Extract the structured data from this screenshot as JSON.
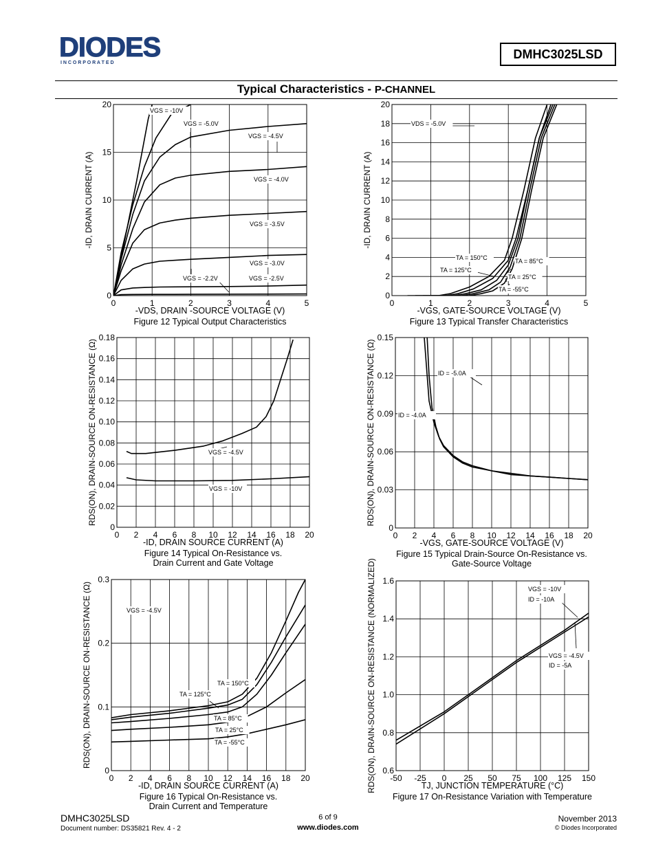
{
  "header": {
    "logo_text": "DIODES",
    "logo_sub": "I N C O R P O R A T E D",
    "part_number": "DMHC3025LSD",
    "title_main": "Typical Characteristics - ",
    "title_channel": "P-CHANNEL"
  },
  "footer": {
    "part": "DMHC3025LSD",
    "doc_number": "Document number: DS35821 Rev. 4 - 2",
    "page": "6 of 9",
    "website": "www.diodes.com",
    "date": "November 2013",
    "copyright": "© Diodes Incorporated"
  },
  "chart_data": [
    {
      "type": "line",
      "caption": "Figure 12 Typical Output Characteristics",
      "xlabel": "-VDS, DRAIN -SOURCE VOLTAGE (V)",
      "ylabel": "-ID, DRAIN CURRENT (A)",
      "xlim": [
        0,
        5
      ],
      "ylim": [
        0,
        20
      ],
      "xticks": [
        "0",
        "1",
        "2",
        "3",
        "4",
        "5"
      ],
      "yticks": [
        "0",
        "5",
        "10",
        "15",
        "20"
      ],
      "grid": true,
      "series": [
        {
          "name": "VGS = -10V",
          "x": [
            0,
            0.3,
            0.6,
            0.9,
            1.0
          ],
          "y": [
            0,
            6,
            12,
            18.5,
            20
          ]
        },
        {
          "name": "VGS = -5.0V",
          "x": [
            0,
            0.2,
            0.5,
            0.8,
            1.1,
            1.5,
            2.0
          ],
          "y": [
            0,
            4.5,
            9.5,
            13.5,
            16.5,
            19,
            20
          ]
        },
        {
          "name": "VGS = -4.5V",
          "x": [
            0,
            0.2,
            0.5,
            0.8,
            1.2,
            1.6,
            2,
            3,
            4,
            5
          ],
          "y": [
            0,
            3.8,
            8.5,
            12,
            14.5,
            15.8,
            16.6,
            17.3,
            17.7,
            18
          ]
        },
        {
          "name": "VGS = -4.0V",
          "x": [
            0,
            0.2,
            0.5,
            0.8,
            1.2,
            1.6,
            2,
            3,
            4,
            5
          ],
          "y": [
            0,
            3.2,
            7,
            9.8,
            11.6,
            12.3,
            12.6,
            13,
            13.2,
            13.5
          ]
        },
        {
          "name": "VGS = -3.5V",
          "x": [
            0,
            0.2,
            0.5,
            0.8,
            1.2,
            1.6,
            2,
            3,
            4,
            5
          ],
          "y": [
            0,
            2.6,
            5.5,
            6.9,
            7.6,
            7.9,
            8.1,
            8.4,
            8.6,
            8.8
          ]
        },
        {
          "name": "VGS = -3.0V",
          "x": [
            0,
            0.2,
            0.5,
            0.8,
            1.2,
            1.6,
            2,
            3,
            4,
            5
          ],
          "y": [
            0,
            1.6,
            2.8,
            3.3,
            3.6,
            3.7,
            3.8,
            4.0,
            4.2,
            4.3
          ]
        },
        {
          "name": "VGS = -2.5V",
          "x": [
            0,
            0.2,
            0.5,
            0.8,
            1.2,
            2,
            3,
            4,
            5
          ],
          "y": [
            0,
            0.6,
            0.8,
            0.85,
            0.9,
            0.92,
            0.95,
            1.0,
            1.1
          ]
        },
        {
          "name": "VGS = -2.2V",
          "x": [
            0,
            0.2,
            0.5,
            1,
            2,
            3,
            4,
            5
          ],
          "y": [
            0,
            0.1,
            0.12,
            0.13,
            0.14,
            0.15,
            0.16,
            0.17
          ]
        }
      ],
      "annotations": [
        "VGS = -10V",
        "VGS = -5.0V",
        "VGS = -4.5V",
        "VGS = -4.0V",
        "VGS = -3.5V",
        "VGS = -3.0V",
        "VGS = -2.5V",
        "VGS = -2.2V"
      ]
    },
    {
      "type": "line",
      "caption": "Figure 13 Typical Transfer Characteristics",
      "xlabel": "-VGS, GATE-SOURCE VOLTAGE (V)",
      "ylabel": "-ID, DRAIN CURRENT (A)",
      "xlim": [
        0,
        5
      ],
      "ylim": [
        0,
        20
      ],
      "xticks": [
        "0",
        "1",
        "2",
        "3",
        "4",
        "5"
      ],
      "yticks": [
        "0",
        "2",
        "4",
        "6",
        "8",
        "10",
        "12",
        "14",
        "16",
        "18",
        "20"
      ],
      "grid": true,
      "series": [
        {
          "name": "TA = 150°C",
          "x": [
            0.4,
            1.2,
            1.5,
            2.0,
            2.5,
            2.9,
            3.1,
            3.4,
            3.7,
            4.0
          ],
          "y": [
            0,
            0,
            0.2,
            0.9,
            2.0,
            3.7,
            6,
            11,
            16.5,
            20
          ]
        },
        {
          "name": "TA = 125°C",
          "x": [
            0.6,
            1.4,
            1.7,
            2.1,
            2.6,
            3.0,
            3.2,
            3.5,
            3.8,
            4.1
          ],
          "y": [
            0,
            0,
            0.2,
            0.7,
            1.8,
            3.7,
            6,
            11,
            16.5,
            20
          ]
        },
        {
          "name": "TA = 85°C",
          "x": [
            0.8,
            1.6,
            1.9,
            2.3,
            2.7,
            3.0,
            3.25,
            3.5,
            3.8,
            4.15
          ],
          "y": [
            0,
            0,
            0.2,
            0.6,
            1.6,
            3.2,
            6,
            11,
            16.5,
            20
          ]
        },
        {
          "name": "TA = 25°C",
          "x": [
            1.0,
            1.8,
            2.1,
            2.5,
            2.8,
            3.05,
            3.3,
            3.55,
            3.85,
            4.2
          ],
          "y": [
            0,
            0,
            0.2,
            0.6,
            1.4,
            3.0,
            6,
            11,
            16.5,
            20
          ]
        },
        {
          "name": "TA = -55°C",
          "x": [
            1.2,
            2.0,
            2.3,
            2.6,
            2.9,
            3.1,
            3.35,
            3.6,
            3.9,
            4.25
          ],
          "y": [
            0,
            0,
            0.2,
            0.5,
            1.3,
            2.8,
            6,
            11,
            16.5,
            20
          ]
        }
      ],
      "annotations": [
        "VDS = -5.0V",
        "TA = 150°C",
        "TA = 125°C",
        "TA = 85°C",
        "TA = 25°C",
        "TA = -55°C"
      ]
    },
    {
      "type": "line",
      "caption": "Figure 14 Typical On-Resistance vs. Drain Current and Gate Voltage",
      "xlabel": "-ID, DRAIN SOURCE CURRENT (A)",
      "ylabel": "RDS(ON), DRAIN-SOURCE ON-RESISTANCE (Ω)",
      "xlim": [
        0,
        20
      ],
      "ylim": [
        0,
        0.18
      ],
      "xticks": [
        "0",
        "2",
        "4",
        "6",
        "8",
        "10",
        "12",
        "14",
        "16",
        "18",
        "20"
      ],
      "yticks": [
        "0",
        "0.02",
        "0.04",
        "0.06",
        "0.08",
        "0.10",
        "0.12",
        "0.14",
        "0.16",
        "0.18"
      ],
      "grid": true,
      "series": [
        {
          "name": "VGS = -4.5V",
          "x": [
            1,
            1.5,
            3,
            6,
            9,
            11,
            13,
            14.5,
            15.5,
            16.3,
            17,
            17.7,
            18.3
          ],
          "y": [
            0.072,
            0.07,
            0.07,
            0.073,
            0.077,
            0.082,
            0.089,
            0.095,
            0.105,
            0.12,
            0.14,
            0.16,
            0.178
          ]
        },
        {
          "name": "VGS = -10V",
          "x": [
            1,
            2,
            4,
            8,
            12,
            16,
            20
          ],
          "y": [
            0.047,
            0.045,
            0.044,
            0.044,
            0.0445,
            0.046,
            0.048
          ]
        }
      ],
      "annotations": [
        "VGS = -4.5V",
        "VGS = -10V"
      ]
    },
    {
      "type": "line",
      "caption": "Figure 15 Typical Drain-Source On-Resistance vs. Gate-Source Voltage",
      "xlabel": "-VGS, GATE-SOURCE VOLTAGE (V)",
      "ylabel": "RDS(ON), DRAIN-SOURCE ON-RESISTANCE (Ω)",
      "xlim": [
        0,
        20
      ],
      "ylim": [
        0,
        0.15
      ],
      "xticks": [
        "0",
        "2",
        "4",
        "6",
        "8",
        "10",
        "12",
        "14",
        "16",
        "18",
        "20"
      ],
      "yticks": [
        "0",
        "0.03",
        "0.06",
        "0.09",
        "0.12",
        "0.15"
      ],
      "grid": true,
      "series": [
        {
          "name": "ID = -5.0A",
          "x": [
            3.0,
            3.2,
            3.5,
            4,
            4.5,
            5,
            6,
            7,
            8,
            10,
            12,
            14,
            16,
            18,
            20
          ],
          "y": [
            0.15,
            0.13,
            0.1,
            0.083,
            0.072,
            0.065,
            0.057,
            0.052,
            0.049,
            0.045,
            0.043,
            0.041,
            0.04,
            0.039,
            0.038
          ]
        },
        {
          "name": "ID = -4.0A",
          "x": [
            3.3,
            3.5,
            3.8,
            4.2,
            4.6,
            5,
            6,
            7,
            8,
            10,
            12,
            14,
            16,
            18,
            20
          ],
          "y": [
            0.15,
            0.12,
            0.095,
            0.08,
            0.07,
            0.064,
            0.056,
            0.051,
            0.048,
            0.045,
            0.042,
            0.041,
            0.04,
            0.039,
            0.038
          ]
        }
      ],
      "annotations": [
        "ID = -5.0A",
        "ID = -4.0A"
      ]
    },
    {
      "type": "line",
      "caption": "Figure 16 Typical On-Resistance vs. Drain Current and Temperature",
      "xlabel": "-ID, DRAIN SOURCE CURRENT (A)",
      "ylabel": "RDS(ON), DRAIN-SOURCE ON-RESISTANCE (Ω)",
      "xlim": [
        0,
        20
      ],
      "ylim": [
        0,
        0.3
      ],
      "xticks": [
        "0",
        "2",
        "4",
        "6",
        "8",
        "10",
        "12",
        "14",
        "16",
        "18",
        "20"
      ],
      "yticks": [
        "0",
        "0.1",
        "0.2",
        "0.3"
      ],
      "grid": true,
      "series": [
        {
          "name": "TA = 150°C",
          "x": [
            0,
            2,
            6,
            10,
            12,
            13.5,
            15,
            16.5,
            18,
            19.3,
            20
          ],
          "y": [
            0.083,
            0.088,
            0.094,
            0.102,
            0.108,
            0.12,
            0.145,
            0.185,
            0.235,
            0.28,
            0.3
          ]
        },
        {
          "name": "TA = 125°C",
          "x": [
            0,
            2,
            6,
            10,
            12,
            13.5,
            15,
            16.5,
            18,
            20
          ],
          "y": [
            0.08,
            0.084,
            0.09,
            0.098,
            0.103,
            0.112,
            0.135,
            0.17,
            0.21,
            0.26
          ]
        },
        {
          "name": "TA = 85°C",
          "x": [
            0,
            2,
            6,
            10,
            12,
            13.5,
            15,
            16.5,
            18,
            20
          ],
          "y": [
            0.075,
            0.077,
            0.082,
            0.088,
            0.092,
            0.1,
            0.12,
            0.15,
            0.185,
            0.23
          ]
        },
        {
          "name": "TA = 25°C",
          "x": [
            0,
            2,
            6,
            10,
            12,
            14,
            16,
            18,
            20
          ],
          "y": [
            0.063,
            0.065,
            0.068,
            0.072,
            0.076,
            0.085,
            0.1,
            0.122,
            0.143
          ]
        },
        {
          "name": "TA = -55°C",
          "x": [
            0,
            2,
            6,
            10,
            12,
            14,
            16,
            18,
            20
          ],
          "y": [
            0.045,
            0.046,
            0.048,
            0.05,
            0.053,
            0.058,
            0.065,
            0.072,
            0.08
          ]
        }
      ],
      "annotations": [
        "VGS = -4.5V",
        "TA = 150°C",
        "TA = 125°C",
        "TA = 85°C",
        "TA = 25°C",
        "TA = -55°C"
      ]
    },
    {
      "type": "line",
      "caption": "Figure 17 On-Resistance Variation with Temperature",
      "xlabel": "TJ, JUNCTION TEMPERATURE (°C)",
      "ylabel": "RDS(ON), DRAIN-SOURCE ON-RESISTANCE (NORMALIZED)",
      "xlim": [
        -50,
        150
      ],
      "ylim": [
        0.6,
        1.6
      ],
      "xticks": [
        "-50",
        "-25",
        "0",
        "25",
        "50",
        "75",
        "100",
        "125",
        "150"
      ],
      "yticks": [
        "0.6",
        "0.8",
        "1.0",
        "1.2",
        "1.4",
        "1.6"
      ],
      "grid": true,
      "series": [
        {
          "name": "VGS = -10V, ID = -10A",
          "x": [
            -50,
            0,
            25,
            50,
            75,
            100,
            125,
            150
          ],
          "y": [
            0.76,
            0.91,
            1.0,
            1.09,
            1.18,
            1.26,
            1.34,
            1.43
          ]
        },
        {
          "name": "VGS = -4.5V, ID = -5A",
          "x": [
            -50,
            0,
            25,
            50,
            75,
            100,
            125,
            150
          ],
          "y": [
            0.74,
            0.9,
            0.99,
            1.08,
            1.17,
            1.25,
            1.33,
            1.41
          ]
        }
      ],
      "annotations": [
        "VGS = -10V",
        "ID = -10A",
        "VGS = -4.5V",
        "ID = -5A"
      ]
    }
  ]
}
